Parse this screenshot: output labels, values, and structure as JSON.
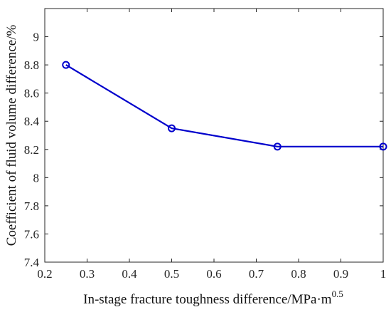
{
  "chart_data": {
    "type": "line",
    "xlabel": "In-stage fracture toughness difference/MPa·m",
    "xlabel_superscript": "0.5",
    "ylabel": "Coefficient of fluid volume difference/%",
    "xlim": [
      0.2,
      1.0
    ],
    "ylim": [
      7.4,
      9.2
    ],
    "x_ticks": [
      "0.2",
      "0.3",
      "0.4",
      "0.5",
      "0.6",
      "0.7",
      "0.8",
      "0.9",
      "1"
    ],
    "y_ticks": [
      "7.4",
      "7.6",
      "7.8",
      "8",
      "8.2",
      "8.4",
      "8.6",
      "8.8",
      "9"
    ],
    "grid": false,
    "series": [
      {
        "x": [
          0.25,
          0.5,
          0.75,
          1.0
        ],
        "y": [
          8.8,
          8.35,
          8.22,
          8.22
        ],
        "color": "#0000cc",
        "marker": "circle"
      }
    ]
  }
}
